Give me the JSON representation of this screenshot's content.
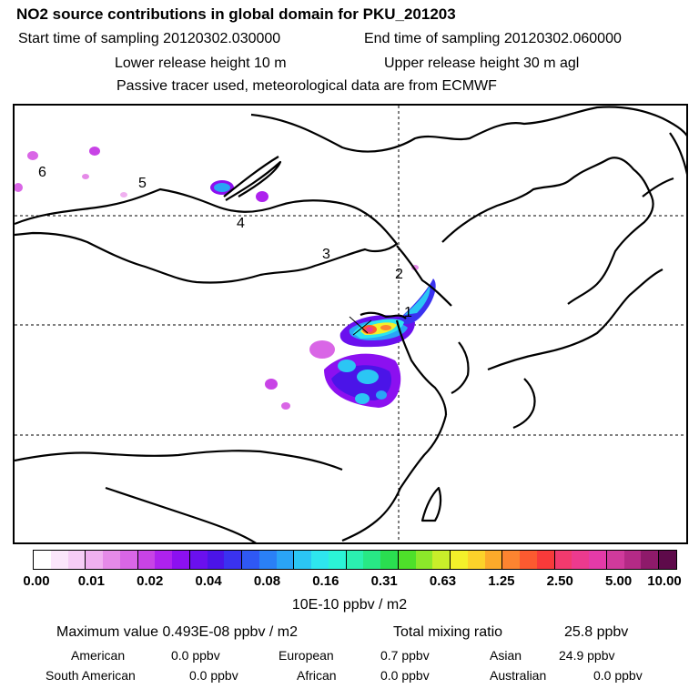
{
  "header": {
    "title": "NO2 source contributions in global domain for PKU_201203",
    "start_label": "Start time of sampling 20120302.030000",
    "end_label": "End time of sampling 20120302.060000",
    "lower_label": "Lower release height   10 m",
    "upper_label": "Upper release height   30 m    agl",
    "note": "Passive tracer used, meteorological data are from ECMWF"
  },
  "map": {
    "region_labels": [
      "1",
      "2",
      "3",
      "4",
      "5",
      "6"
    ]
  },
  "colorbar": {
    "ticks": [
      "0.00",
      "0.01",
      "0.02",
      "0.04",
      "0.08",
      "0.16",
      "0.31",
      "0.63",
      "1.25",
      "2.50",
      "5.00",
      "10.00"
    ],
    "colors": [
      "#ffffff",
      "#fbe6fb",
      "#f6cdf6",
      "#f0b0f0",
      "#e58ae8",
      "#d966e6",
      "#c843e6",
      "#ae22ee",
      "#8c10f0",
      "#6a10ee",
      "#4b14e8",
      "#3a32f0",
      "#2f58f4",
      "#2a80f6",
      "#2aa4f6",
      "#2bc6f4",
      "#2ee6ee",
      "#2bf4d6",
      "#2bf0b0",
      "#28e885",
      "#2ade50",
      "#4ee02a",
      "#8ce82a",
      "#c8ee2a",
      "#f4f02a",
      "#fcd22a",
      "#fcaa2a",
      "#fc8430",
      "#fc5a30",
      "#f83a3a",
      "#f23a6e",
      "#ec3a8e",
      "#e43aa8",
      "#d03a9c",
      "#b42a86",
      "#8e1a6a",
      "#5e0a4a"
    ],
    "unit": "10E-10 ppbv / m2"
  },
  "summary": {
    "max_label": "Maximum value  0.493E-08 ppbv / m2",
    "total_label": "Total mixing ratio",
    "total_value": "25.8 ppbv",
    "american_label": "American",
    "american_value": "0.0 ppbv",
    "european_label": "European",
    "european_value": "0.7 ppbv",
    "asian_label": "Asian",
    "asian_value": "24.9 ppbv",
    "south_american_label": "South American",
    "south_american_value": "0.0 ppbv",
    "african_label": "African",
    "african_value": "0.0 ppbv",
    "australian_label": "Australian",
    "australian_value": "0.0 ppbv"
  }
}
